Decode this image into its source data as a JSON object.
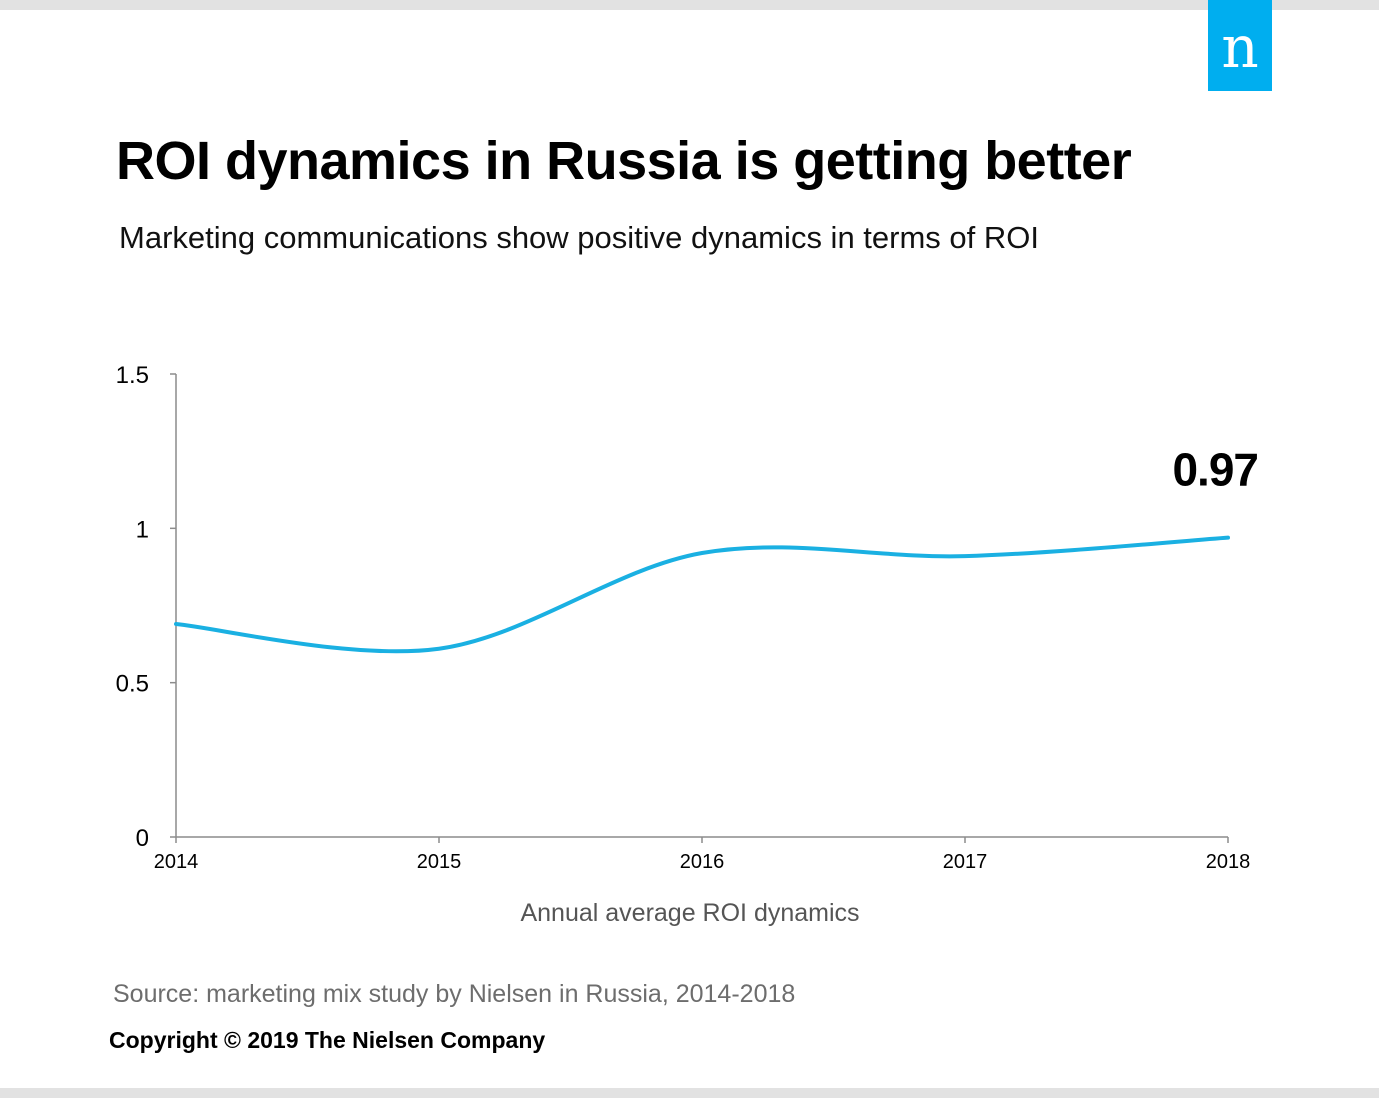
{
  "logo": {
    "text": "n",
    "color": "#00aeef"
  },
  "header": {
    "title": "ROI dynamics in Russia is getting better",
    "subtitle": "Marketing communications show positive dynamics in terms of ROI"
  },
  "chart_data": {
    "type": "line",
    "categories": [
      "2014",
      "2015",
      "2016",
      "2017",
      "2018"
    ],
    "series": [
      {
        "name": "Annual average ROI",
        "values": [
          0.69,
          0.61,
          0.92,
          0.91,
          0.97
        ],
        "color": "#1ab0e2"
      }
    ],
    "y_ticks": [
      "0",
      "0.5",
      "1",
      "1.5"
    ],
    "ylim": [
      0,
      1.5
    ],
    "xlabel": "Annual average ROI dynamics",
    "ylabel": "",
    "annotation": {
      "text": "0.97",
      "category": "2018"
    }
  },
  "footer": {
    "source": "Source: marketing mix study by Nielsen in Russia, 2014-2018",
    "copyright": "Copyright © 2019 The Nielsen Company"
  }
}
